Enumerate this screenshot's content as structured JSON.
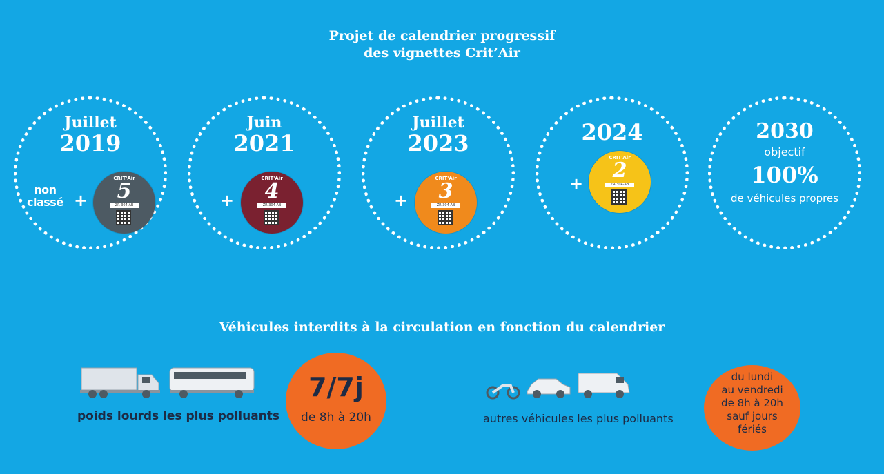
{
  "title": {
    "line1": "Projet de calendrier progressif",
    "line2": "des vignettes Crit’Air"
  },
  "steps": [
    {
      "month": "Juillet",
      "year": "2019",
      "extra": [
        "non",
        "classé"
      ],
      "vignette": {
        "brand": "CRIT'Air",
        "number": "5",
        "color": "#4d5a63",
        "plate": "ZR-304-AB"
      }
    },
    {
      "month": "Juin",
      "year": "2021",
      "vignette": {
        "brand": "CRIT'Air",
        "number": "4",
        "color": "#7a2130",
        "plate": "ZR-304-AB"
      }
    },
    {
      "month": "Juillet",
      "year": "2023",
      "vignette": {
        "brand": "CRIT'Air",
        "number": "3",
        "color": "#f08a1c",
        "plate": "ZR-304-AB"
      }
    },
    {
      "year": "2024",
      "vignette": {
        "brand": "CRIT'Air",
        "number": "2",
        "color": "#f6c318",
        "plate": "ZR-304-AB"
      }
    }
  ],
  "goal": {
    "year": "2030",
    "label": "objectif",
    "percent": "100%",
    "description": "de véhicules propres"
  },
  "plus_sign": "+",
  "subtitle": "Véhicules interdits à la circulation en fonction du calendrier",
  "heavy": {
    "label": "poids lourds les plus polluants",
    "schedule_big": "7/7j",
    "schedule_small": "de 8h à 20h",
    "icons": [
      "truck-icon",
      "bus-icon"
    ]
  },
  "other": {
    "label": "autres véhicules les plus polluants",
    "schedule_lines": [
      "du lundi",
      "au vendredi",
      "de 8h à 20h",
      "sauf jours",
      "fériés"
    ],
    "icons": [
      "motorcycle-icon",
      "car-icon",
      "van-icon"
    ]
  },
  "colors": {
    "background": "#13a7e4",
    "orange": "#f06b23",
    "dark_text": "#1d2b45"
  }
}
